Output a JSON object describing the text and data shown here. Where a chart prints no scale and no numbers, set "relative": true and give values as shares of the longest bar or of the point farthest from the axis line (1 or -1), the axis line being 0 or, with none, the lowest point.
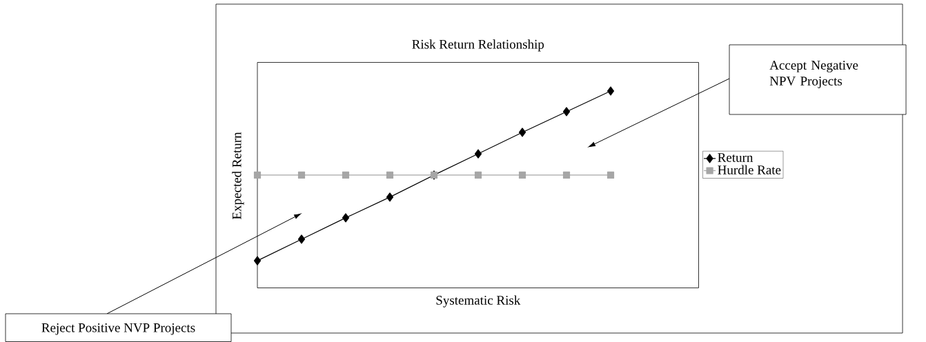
{
  "chart_data": {
    "type": "line",
    "title": "Risk Return Relationship",
    "xlabel": "Systematic Risk",
    "ylabel": "Expected Return",
    "relative": true,
    "categories": [
      null,
      null,
      null,
      null,
      null,
      null,
      null,
      null,
      null
    ],
    "series": [
      {
        "name": "Return",
        "color": "#000000",
        "marker": "diamond",
        "values": [
          0.138,
          0.247,
          0.356,
          0.461,
          0.573,
          0.681,
          0.79,
          0.895,
          1
        ]
      },
      {
        "name": "Hurdle Rate",
        "color": "#a6a6a6",
        "marker": "square",
        "values": [
          0.573,
          0.573,
          0.573,
          0.573,
          0.573,
          0.573,
          0.573,
          0.573,
          0.573
        ]
      }
    ],
    "legend": "right",
    "annotations": [
      "Accept Negative NPV Projects",
      "Reject Positive NVP Projects"
    ]
  }
}
